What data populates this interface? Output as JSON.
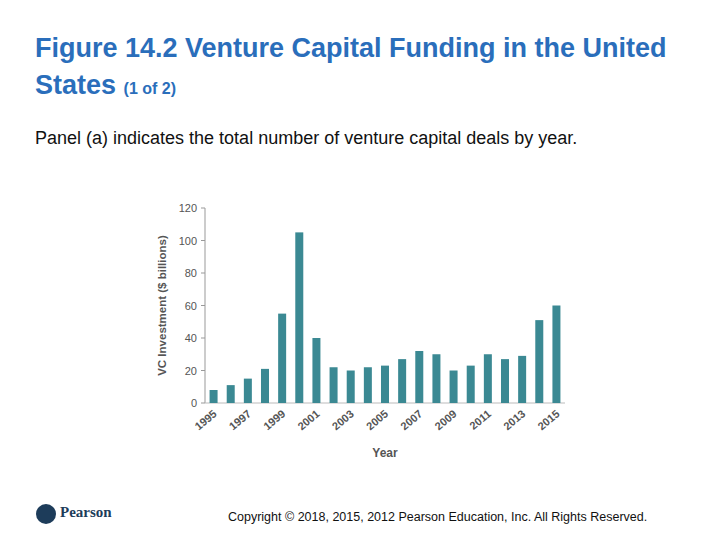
{
  "header": {
    "title": "Figure 14.2 Venture Capital Funding in the United States",
    "title_suffix": "(1 of 2)"
  },
  "caption": "Panel (a) indicates the total number of venture capital deals by year.",
  "chart_data": {
    "type": "bar",
    "categories": [
      "1995",
      null,
      "1997",
      null,
      "1999",
      null,
      "2001",
      null,
      "2003",
      null,
      "2005",
      null,
      "2007",
      null,
      "2009",
      null,
      "2011",
      null,
      "2013",
      null,
      "2015"
    ],
    "values": [
      8,
      11,
      15,
      21,
      55,
      105,
      40,
      22,
      20,
      22,
      23,
      27,
      32,
      30,
      20,
      23,
      30,
      27,
      29,
      51,
      60
    ],
    "color": "#3b8993",
    "x_label": "Year",
    "y_label": "VC Investment ($ billions)",
    "ylim": [
      0,
      120
    ],
    "yticks": [
      0,
      20,
      40,
      60,
      80,
      100,
      120
    ],
    "grid": false
  },
  "footer": {
    "logo": "Pearson",
    "copyright": "Copyright © 2018, 2015, 2012 Pearson Education, Inc. All Rights Reserved."
  }
}
